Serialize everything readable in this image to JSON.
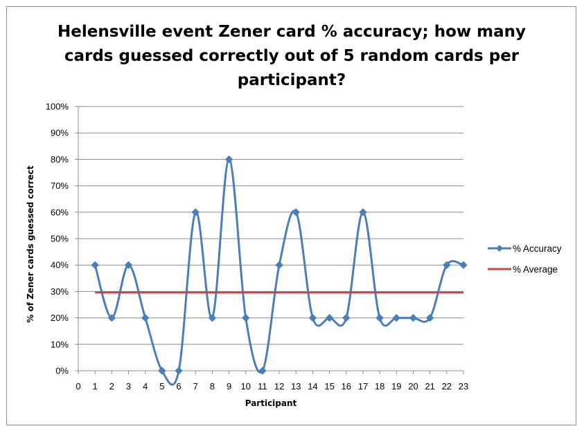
{
  "chart_data": {
    "type": "line",
    "title_lines": [
      "Helensville event Zener card % accuracy; how many",
      "cards guessed correctly out of 5 random cards per",
      "participant?"
    ],
    "xlabel": "Participant",
    "ylabel": "% of Zener cards guessed correct",
    "xlim": [
      0,
      23
    ],
    "ylim": [
      0,
      100
    ],
    "x_ticks": [
      0,
      1,
      2,
      3,
      4,
      5,
      6,
      7,
      8,
      9,
      10,
      11,
      12,
      13,
      14,
      15,
      16,
      17,
      18,
      19,
      20,
      21,
      22,
      23
    ],
    "y_ticks": [
      "0%",
      "10%",
      "20%",
      "30%",
      "40%",
      "50%",
      "60%",
      "70%",
      "80%",
      "90%",
      "100%"
    ],
    "y_tick_values": [
      0,
      10,
      20,
      30,
      40,
      50,
      60,
      70,
      80,
      90,
      100
    ],
    "grid": "horizontal",
    "legend_position": "right",
    "series": [
      {
        "name": "% Accuracy",
        "color": "#4a7ebb",
        "marker": "diamond",
        "smoothed": true,
        "x": [
          1,
          2,
          3,
          4,
          5,
          6,
          7,
          8,
          9,
          10,
          11,
          12,
          13,
          14,
          15,
          16,
          17,
          18,
          19,
          20,
          21,
          22,
          23
        ],
        "values": [
          40,
          20,
          40,
          20,
          0,
          0,
          60,
          20,
          80,
          20,
          0,
          40,
          60,
          20,
          20,
          20,
          60,
          20,
          20,
          20,
          20,
          40,
          40
        ]
      },
      {
        "name": "% Average",
        "color": "#be4b48",
        "marker": "none",
        "x": [
          1,
          23
        ],
        "values": [
          29.6,
          29.6
        ]
      }
    ]
  }
}
